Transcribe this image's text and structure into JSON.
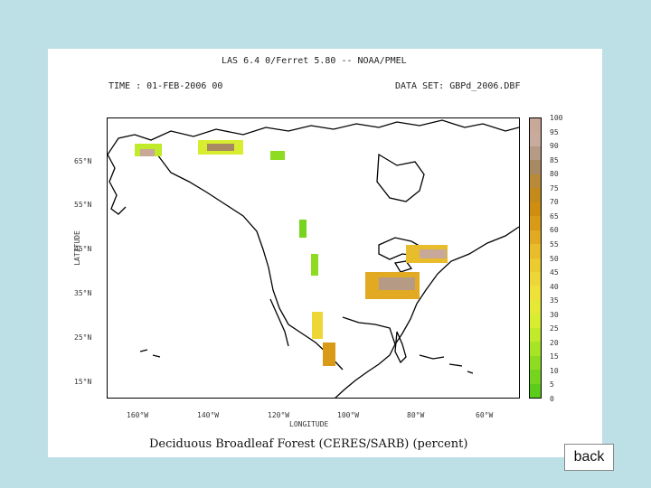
{
  "header": {
    "title": "LAS 6.4 0/Ferret 5.80 -- NOAA/PMEL",
    "time": "TIME : 01-FEB-2006 00",
    "dataset": "DATA SET: GBPd_2006.DBF"
  },
  "axes": {
    "lat_labels": [
      "65°N",
      "55°N",
      "45°N",
      "35°N",
      "25°N",
      "15°N"
    ],
    "lon_labels": [
      "160°W",
      "140°W",
      "120°W",
      "100°W",
      "80°W",
      "60°W"
    ],
    "ylabel": "LATITUDE",
    "xlabel": "LONGITUDE"
  },
  "colorbar": {
    "labels": [
      "100",
      "95",
      "90",
      "85",
      "80",
      "75",
      "70",
      "65",
      "60",
      "55",
      "50",
      "45",
      "40",
      "35",
      "30",
      "25",
      "20",
      "15",
      "10",
      "5",
      "0"
    ],
    "colors": [
      "#c8a898",
      "#c9ab9e",
      "#b59a85",
      "#a88a62",
      "#b98a3a",
      "#c48a1a",
      "#cf8e10",
      "#d99a18",
      "#e2aa22",
      "#e8bc2a",
      "#ebcb2e",
      "#eed636",
      "#f0e03a",
      "#e6e836",
      "#d8ec30",
      "#c0ea2a",
      "#a8e426",
      "#8edc22",
      "#76d41e",
      "#5ccc1a"
    ]
  },
  "caption": "Deciduous Broadleaf Forest (CERES/SARB) (percent)",
  "back_label": "back"
}
